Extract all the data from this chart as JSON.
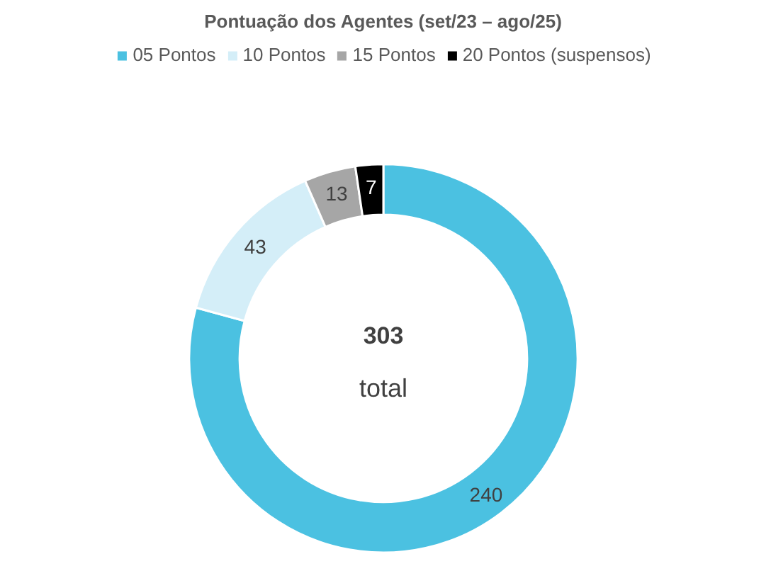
{
  "chart_data": {
    "type": "donut",
    "title": "Pontuação dos Agentes (set/23 – ago/25)",
    "categories": [
      "05 Pontos",
      "10 Pontos",
      "15 Pontos",
      "20 Pontos (suspensos)"
    ],
    "values": [
      240,
      43,
      13,
      7
    ],
    "colors": [
      "#4bc1e1",
      "#d4eef8",
      "#a6a6a6",
      "#000000"
    ],
    "data_labels": true,
    "legend": "top",
    "annotations": [
      "303",
      "total"
    ]
  }
}
